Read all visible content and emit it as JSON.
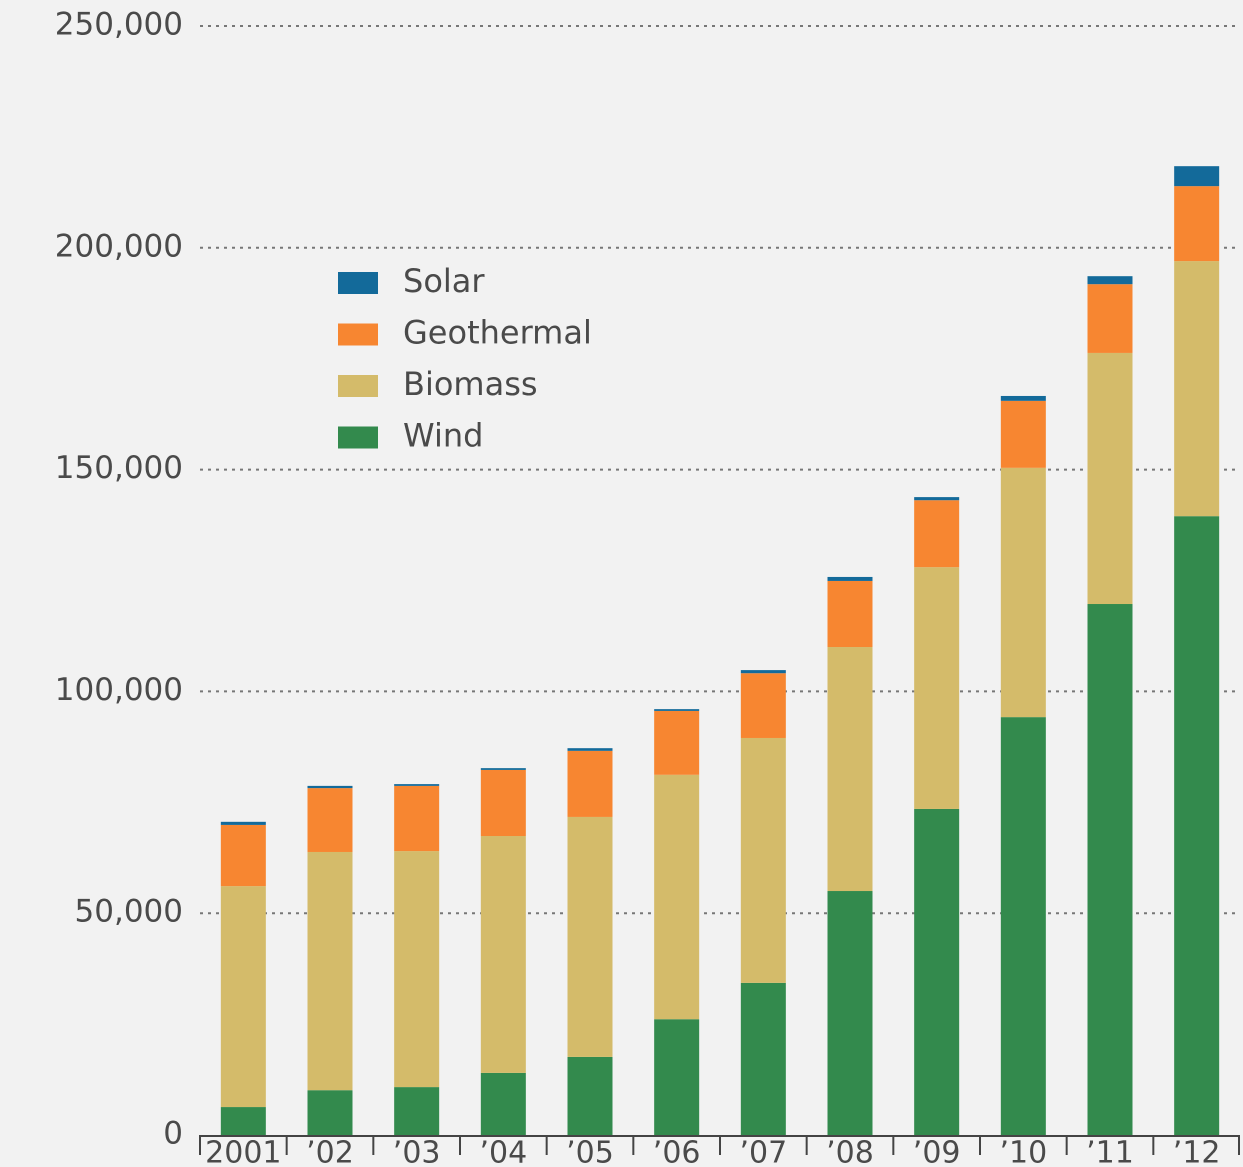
{
  "chart_data": {
    "type": "bar",
    "stacked": true,
    "categories": [
      "2001",
      "’02",
      "’03",
      "’04",
      "’05",
      "’06",
      "’07",
      "’08",
      "’09",
      "’10",
      "’11",
      "’12"
    ],
    "series": [
      {
        "name": "Wind",
        "color": "#338a4d",
        "values": [
          6300,
          10100,
          10800,
          14000,
          17600,
          26100,
          34300,
          55000,
          73500,
          94200,
          119700,
          139500
        ]
      },
      {
        "name": "Biomass",
        "color": "#d4bb6a",
        "values": [
          49800,
          53700,
          53200,
          53400,
          54100,
          55100,
          55200,
          55000,
          54500,
          56200,
          56600,
          57500
        ]
      },
      {
        "name": "Geothermal",
        "color": "#f78631",
        "values": [
          13800,
          14400,
          14700,
          14900,
          14900,
          14400,
          14600,
          14900,
          15100,
          15100,
          15500,
          16900
        ]
      },
      {
        "name": "Solar",
        "color": "#136a9a",
        "values": [
          700,
          500,
          400,
          400,
          600,
          400,
          700,
          900,
          700,
          1100,
          1800,
          4500
        ]
      }
    ],
    "ylim": [
      0,
      250000
    ],
    "yticks": [
      0,
      {
        "value": 50000,
        "label": "50,000"
      },
      {
        "value": 100000,
        "label": "100,000"
      },
      {
        "value": 150000,
        "label": "150,000"
      },
      {
        "value": 200000,
        "label": "200,000"
      },
      {
        "value": 250000,
        "label": "250,000"
      }
    ],
    "grid": true
  }
}
